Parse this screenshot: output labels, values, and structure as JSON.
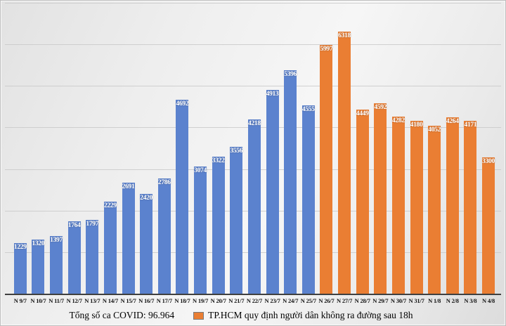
{
  "chart_data": {
    "type": "bar",
    "title": "",
    "xlabel": "",
    "ylabel": "",
    "ylim": [
      0,
      7000
    ],
    "gridline_step": 1000,
    "grid": true,
    "data_labels": true,
    "legend_position": "bottom",
    "categories": [
      "N 9/7",
      "N 10/7",
      "N 11/7",
      "N 12/7",
      "N 13/7",
      "N 14/7",
      "N 15/7",
      "N 16/7",
      "N 17/7",
      "N 18/7",
      "N 19/7",
      "N 20/7",
      "N 21/7",
      "N 22/7",
      "N 23/7",
      "N 24/7",
      "N 25/7",
      "N 26/7",
      "N 27/7",
      "N 28/7",
      "N 29/7",
      "N 30/7",
      "N 31/7",
      "N 1/8",
      "N 2/8",
      "N 3/8",
      "N 4/8"
    ],
    "values": [
      1229,
      1320,
      1397,
      1764,
      1797,
      2229,
      2691,
      2420,
      2786,
      4692,
      3074,
      3322,
      3556,
      4218,
      4913,
      5396,
      4555,
      5997,
      6318,
      4449,
      4592,
      4282,
      4180,
      4052,
      4264,
      4171,
      3300
    ],
    "segments": [
      {
        "color": "#5b82ce",
        "from": "N 9/7",
        "to": "N 25/7",
        "count": 17
      },
      {
        "color": "#ea7e33",
        "from": "N 26/7",
        "to": "N 4/8",
        "count": 10
      }
    ]
  },
  "legend": {
    "items": [
      {
        "text": "Tổng số ca COVID: 96.964",
        "swatch": null
      },
      {
        "text": "TP.HCM quy định người dân không ra đường sau 18h",
        "swatch": "#ea7e33"
      }
    ]
  },
  "colors": {
    "bar_blue": "#5b82ce",
    "bar_orange": "#ea7e33",
    "background": "#ececec",
    "gridline": "#c9c9c9",
    "axis_line": "#3f3f3f",
    "bar_label_text": "#ffffff",
    "axis_label_text": "#141414"
  }
}
